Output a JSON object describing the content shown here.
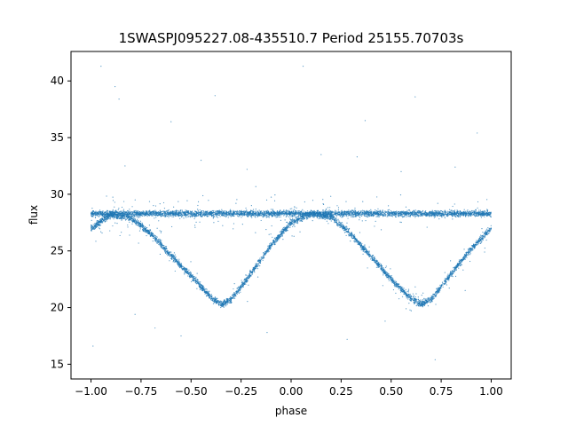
{
  "chart_data": {
    "type": "scatter",
    "title": "1SWASPJ095227.08-435510.7 Period 25155.70703s",
    "xlabel": "phase",
    "ylabel": "flux",
    "xlim": [
      -1.1,
      1.1
    ],
    "ylim": [
      13.7,
      42.6
    ],
    "x_ticks": [
      -1.0,
      -0.75,
      -0.5,
      -0.25,
      0.0,
      0.25,
      0.5,
      0.75,
      1.0
    ],
    "x_tick_labels": [
      "−1.00",
      "−0.75",
      "−0.50",
      "−0.25",
      "0.00",
      "0.25",
      "0.50",
      "0.75",
      "1.00"
    ],
    "y_ticks": [
      15,
      20,
      25,
      30,
      35,
      40
    ],
    "y_tick_labels": [
      "15",
      "20",
      "25",
      "30",
      "35",
      "40"
    ],
    "grid": false,
    "marker_color": "#1f77b4",
    "series": [
      {
        "name": "",
        "description_values": "phase-folded light curve: constant branch near flux 28.3, plus eclipse branch with minima near 20.3 at phase -0.35 and 0.65",
        "baseline_flux": 28.3,
        "eclipse_minimum_flux": 20.3,
        "eclipse_minimum_phases": [
          -0.35,
          0.65
        ],
        "eclipse_branch_points": [
          [
            -1.0,
            27.0
          ],
          [
            -0.9,
            28.2
          ],
          [
            -0.8,
            27.9
          ],
          [
            -0.7,
            26.5
          ],
          [
            -0.6,
            24.6
          ],
          [
            -0.5,
            22.8
          ],
          [
            -0.4,
            20.9
          ],
          [
            -0.35,
            20.3
          ],
          [
            -0.3,
            20.7
          ],
          [
            -0.2,
            23.0
          ],
          [
            -0.1,
            25.5
          ],
          [
            0.0,
            27.5
          ],
          [
            0.1,
            28.3
          ],
          [
            0.2,
            28.0
          ],
          [
            0.3,
            26.5
          ],
          [
            0.4,
            24.5
          ],
          [
            0.5,
            22.5
          ],
          [
            0.6,
            20.8
          ],
          [
            0.65,
            20.3
          ],
          [
            0.7,
            20.7
          ],
          [
            0.8,
            23.0
          ],
          [
            0.9,
            25.2
          ],
          [
            1.0,
            27.0
          ]
        ],
        "outlier_points": [
          [
            -0.95,
            41.3
          ],
          [
            -0.88,
            39.5
          ],
          [
            -0.86,
            38.4
          ],
          [
            -0.6,
            36.4
          ],
          [
            -0.38,
            38.7
          ],
          [
            0.06,
            41.3
          ],
          [
            0.62,
            38.6
          ],
          [
            0.37,
            36.5
          ],
          [
            0.93,
            35.4
          ],
          [
            -0.99,
            16.6
          ],
          [
            -0.68,
            18.2
          ],
          [
            -0.55,
            17.5
          ],
          [
            -0.12,
            17.8
          ],
          [
            0.28,
            17.2
          ],
          [
            0.72,
            15.4
          ],
          [
            0.47,
            18.8
          ],
          [
            -0.78,
            19.4
          ],
          [
            0.87,
            21.5
          ],
          [
            -0.22,
            32.2
          ],
          [
            0.33,
            33.3
          ],
          [
            -0.45,
            33.0
          ],
          [
            0.15,
            33.5
          ],
          [
            0.55,
            32.0
          ],
          [
            -0.83,
            32.5
          ],
          [
            0.82,
            32.4
          ]
        ]
      }
    ]
  }
}
